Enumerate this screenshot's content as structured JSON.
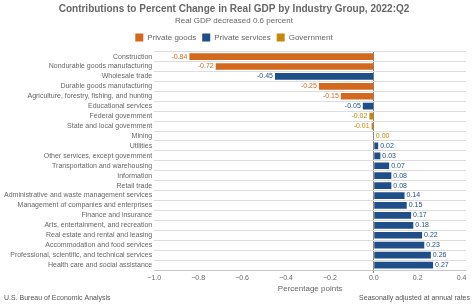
{
  "chart_data": {
    "type": "bar",
    "orientation": "horizontal",
    "stacked": true,
    "title": "Contributions to Percent Change in Real GDP by Industry Group, 2022:Q2",
    "subtitle": "Real GDP decreased 0.6 percent",
    "xlabel": "Percentage points",
    "annotations": [
      "U.S. Bureau of Economic Analysis",
      "Seasonally adjusted at annual rates"
    ],
    "categories": [
      "Construction",
      "Nondurable goods manufacturing",
      "Wholesale trade",
      "Durable goods manufacturing",
      "Agriculture, forestry, fishing, and hunting",
      "Educational services",
      "Federal government",
      "State and local government",
      "Mining",
      "Utilities",
      "Other services, except government",
      "Transportation and warehousing",
      "Information",
      "Retail trade",
      "Administrative and waste management services",
      "Management of companies and enterprises",
      "Finance and insurance",
      "Arts, entertainment, and recreation",
      "Real estate and rental and leasing",
      "Accommodation and food services",
      "Professional, scientific, and technical services",
      "Health care and social assistance"
    ],
    "series": [
      {
        "name": "Private goods",
        "color": "#D2691E",
        "values": [
          -0.84,
          -0.72,
          null,
          -0.25,
          -0.15,
          null,
          null,
          null,
          null,
          null,
          null,
          null,
          null,
          null,
          null,
          null,
          null,
          null,
          null,
          null,
          null,
          null
        ],
        "value_labels": [
          "-0.84",
          "-0.72",
          null,
          "-0.25",
          "-0.15",
          null,
          null,
          null,
          null,
          null,
          null,
          null,
          null,
          null,
          null,
          null,
          null,
          null,
          null,
          null,
          null,
          null
        ]
      },
      {
        "name": "Private services",
        "color": "#1F4E88",
        "values": [
          null,
          null,
          -0.45,
          null,
          null,
          -0.05,
          null,
          null,
          null,
          0.02,
          0.03,
          0.07,
          0.08,
          0.08,
          0.14,
          0.15,
          0.17,
          0.18,
          0.22,
          0.23,
          0.26,
          0.27
        ],
        "value_labels": [
          null,
          null,
          "-0.45",
          null,
          null,
          "-0.05",
          null,
          null,
          null,
          "0.02",
          "0.03",
          "0.07",
          "0.08",
          "0.08",
          "0.14",
          "0.15",
          "0.17",
          "0.18",
          "0.22",
          "0.23",
          "0.26",
          "0.27"
        ]
      },
      {
        "name": "Government",
        "color": "#C8860A",
        "values": [
          null,
          null,
          null,
          null,
          null,
          null,
          -0.02,
          -0.01,
          0.0,
          null,
          null,
          null,
          null,
          null,
          null,
          null,
          null,
          null,
          null,
          null,
          null,
          null
        ],
        "value_labels": [
          null,
          null,
          null,
          null,
          null,
          null,
          "-0.02",
          "-0.01",
          "0.00",
          null,
          null,
          null,
          null,
          null,
          null,
          null,
          null,
          null,
          null,
          null,
          null,
          null
        ]
      }
    ],
    "xlim": [
      -1.0,
      0.42
    ],
    "xticks": [
      {
        "value": -1.0,
        "label": "−1.0"
      },
      {
        "value": -0.8,
        "label": "−0.8"
      },
      {
        "value": -0.6,
        "label": "−0.6"
      },
      {
        "value": -0.4,
        "label": "−0.4"
      },
      {
        "value": -0.2,
        "label": "−0.2"
      },
      {
        "value": 0.0,
        "label": "0.0"
      },
      {
        "value": 0.2,
        "label": "0.2"
      },
      {
        "value": 0.4,
        "label": "0.4"
      }
    ],
    "data_labels": true,
    "grid": true,
    "legend": "top"
  }
}
